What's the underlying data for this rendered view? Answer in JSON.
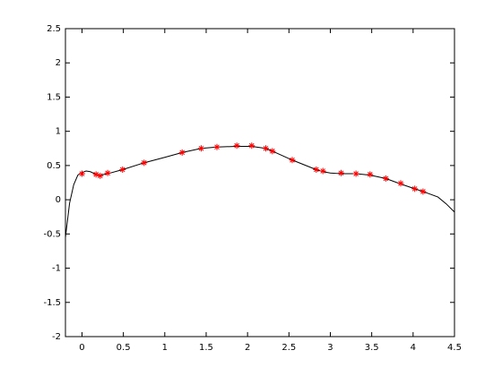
{
  "chart_data": {
    "type": "line",
    "xlim": [
      -0.2,
      4.5
    ],
    "ylim": [
      -2,
      2.5
    ],
    "xticks": [
      0,
      0.5,
      1,
      1.5,
      2,
      2.5,
      3,
      3.5,
      4,
      4.5
    ],
    "yticks": [
      -2,
      -1.5,
      -1,
      -0.5,
      0,
      0.5,
      1,
      1.5,
      2,
      2.5
    ],
    "grid": false,
    "series": [
      {
        "color": "#000000",
        "style": "line",
        "x": [
          -0.2,
          -0.15,
          -0.1,
          -0.05,
          0,
          0.05,
          0.1,
          0.17,
          0.22,
          0.31,
          0.49,
          0.75,
          1.0,
          1.21,
          1.44,
          1.63,
          1.87,
          2.05,
          2.22,
          2.3,
          2.54,
          2.83,
          2.91,
          3.0,
          3.13,
          3.31,
          3.48,
          3.67,
          3.85,
          4.02,
          4.12,
          4.3,
          4.4,
          4.5
        ],
        "values": [
          -0.55,
          -0.05,
          0.22,
          0.36,
          0.4,
          0.42,
          0.41,
          0.37,
          0.36,
          0.38,
          0.44,
          0.54,
          0.62,
          0.69,
          0.75,
          0.77,
          0.78,
          0.78,
          0.75,
          0.71,
          0.58,
          0.44,
          0.41,
          0.39,
          0.38,
          0.38,
          0.36,
          0.31,
          0.23,
          0.16,
          0.12,
          0.04,
          -0.06,
          -0.18
        ]
      },
      {
        "color": "#ff0000",
        "style": "star",
        "x": [
          0,
          0.17,
          0.22,
          0.31,
          0.49,
          0.75,
          1.21,
          1.44,
          1.63,
          1.87,
          2.05,
          2.22,
          2.3,
          2.54,
          2.83,
          2.91,
          3.13,
          3.31,
          3.48,
          3.67,
          3.85,
          4.02,
          4.12
        ],
        "values": [
          0.38,
          0.37,
          0.35,
          0.39,
          0.44,
          0.54,
          0.69,
          0.75,
          0.77,
          0.79,
          0.79,
          0.75,
          0.71,
          0.58,
          0.44,
          0.42,
          0.39,
          0.38,
          0.37,
          0.31,
          0.24,
          0.16,
          0.12
        ]
      }
    ]
  }
}
